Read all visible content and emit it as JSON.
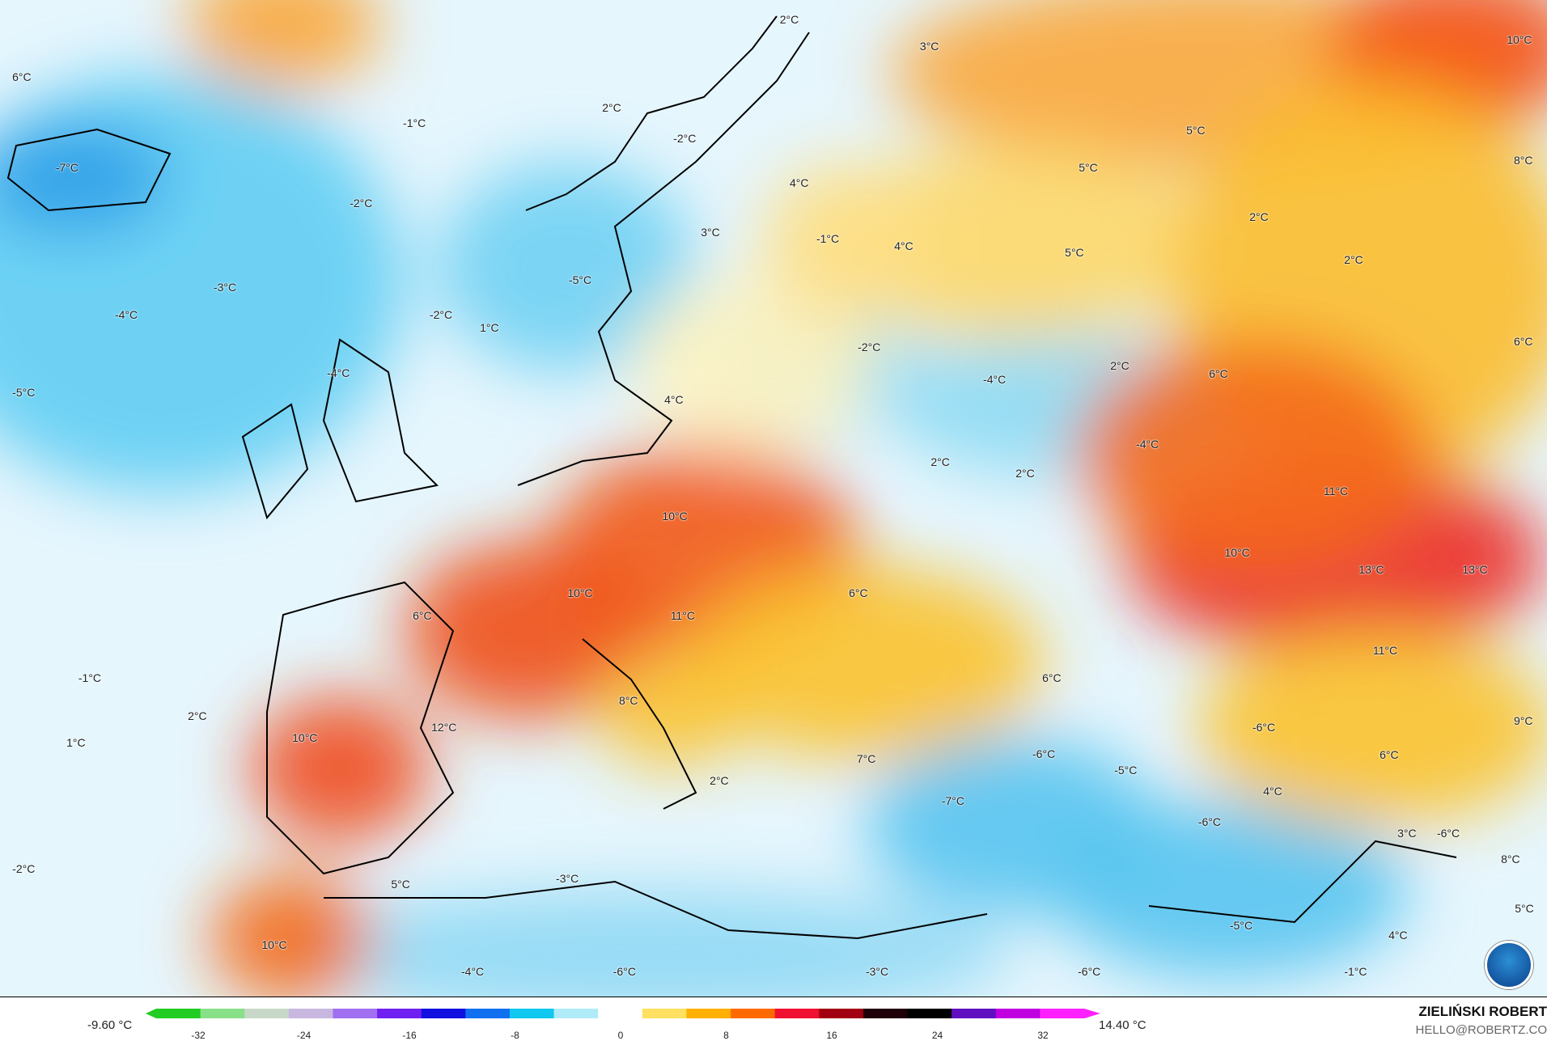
{
  "map": {
    "labels": [
      "6°C",
      "-1°C",
      "2°C",
      "-2°C",
      "2°C",
      "3°C",
      "10°C",
      "-7°C",
      "5°C",
      "8°C",
      "5°C",
      "4°C",
      "-2°C",
      "3°C",
      "-1°C",
      "4°C",
      "2°C",
      "5°C",
      "2°C",
      "-5°C",
      "-3°C",
      "-4°C",
      "-2°C",
      "1°C",
      "6°C",
      "-2°C",
      "-4°C",
      "2°C",
      "6°C",
      "-4°C",
      "-5°C",
      "4°C",
      "-4°C",
      "2°C",
      "2°C",
      "11°C",
      "10°C",
      "10°C",
      "13°C",
      "13°C",
      "10°C",
      "6°C",
      "6°C",
      "11°C",
      "11°C",
      "-1°C",
      "6°C",
      "8°C",
      "2°C",
      "-6°C",
      "12°C",
      "10°C",
      "1°C",
      "9°C",
      "-6°C",
      "7°C",
      "6°C",
      "-5°C",
      "2°C",
      "4°C",
      "-7°C",
      "-6°C",
      "3°C",
      "-6°C",
      "8°C",
      "-2°C",
      "5°C",
      "-3°C",
      "5°C",
      "-5°C",
      "4°C",
      "10°C",
      "-4°C",
      "-6°C",
      "-3°C",
      "-6°C",
      "-1°C"
    ],
    "logo": "NOAA"
  },
  "legend": {
    "min_label": "-9.60 °C",
    "max_label": "14.40 °C",
    "ticks": [
      "-32",
      "-24",
      "-16",
      "-8",
      "0",
      "8",
      "16",
      "24",
      "32"
    ],
    "colors": [
      "#22cc22",
      "#88e088",
      "#c8d8c8",
      "#c8b8e0",
      "#a070f0",
      "#7020f0",
      "#1010e0",
      "#1070f0",
      "#10c8f0",
      "#b0ecf8",
      "#ffffff",
      "#ffe060",
      "#ffb000",
      "#ff6a00",
      "#f01030",
      "#a00010",
      "#200008",
      "#000000",
      "#6010c0",
      "#c000e0",
      "#ff20ff"
    ]
  },
  "credits": {
    "author": "ZIELIŃSKI ROBERT",
    "email": "HELLO@ROBERTZ.CO"
  }
}
